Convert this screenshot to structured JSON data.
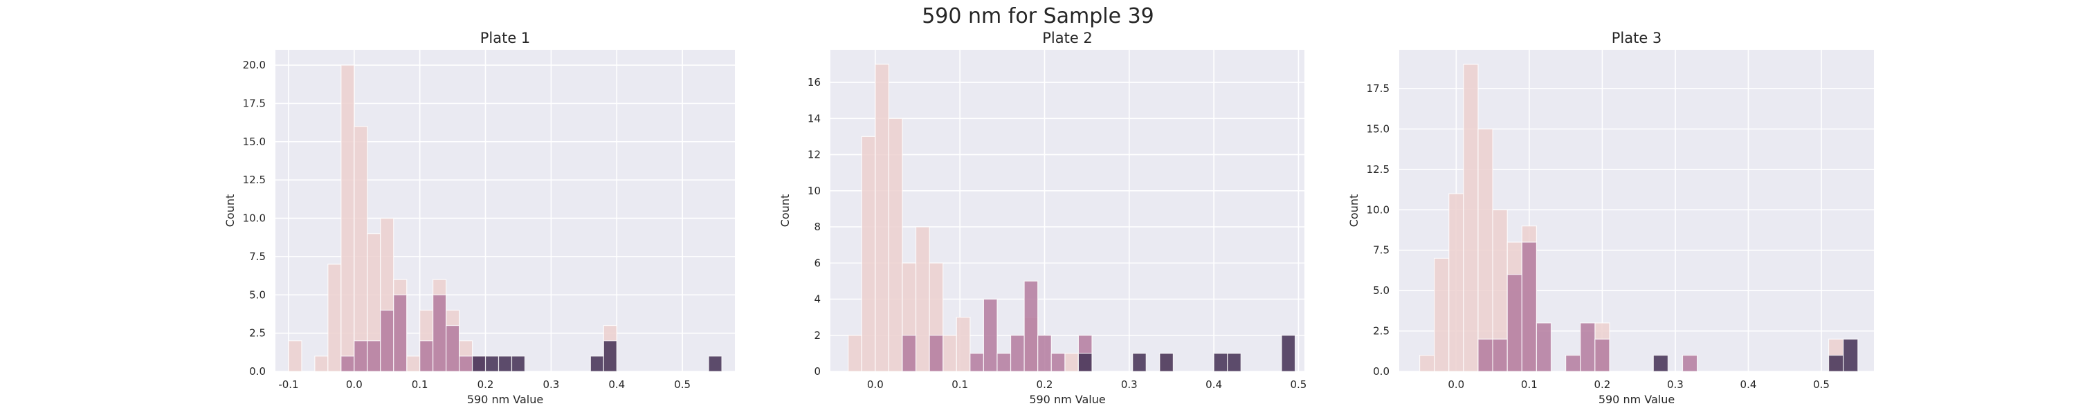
{
  "figure": {
    "title": "590 nm for Sample 39"
  },
  "chart_data": [
    {
      "type": "bar",
      "title": "Plate 1",
      "xlabel": "590 nm Value",
      "ylabel": "Count",
      "xlim": [
        -0.12,
        0.58
      ],
      "ylim": [
        0,
        21
      ],
      "xticks": [
        -0.1,
        0.0,
        0.1,
        0.2,
        0.3,
        0.4,
        0.5
      ],
      "yticks": [
        0.0,
        2.5,
        5.0,
        7.5,
        10.0,
        12.5,
        15.0,
        17.5,
        20.0
      ],
      "tick_decimals": 1,
      "bin_width": 0.02,
      "grid": true,
      "series": [
        {
          "bins": [
            [
              -0.1,
              2
            ],
            [
              -0.06,
              1
            ],
            [
              -0.04,
              7
            ],
            [
              -0.02,
              20
            ],
            [
              0.0,
              16
            ],
            [
              0.02,
              9
            ],
            [
              0.04,
              10
            ],
            [
              0.06,
              6
            ],
            [
              0.08,
              1
            ],
            [
              0.1,
              4
            ],
            [
              0.12,
              6
            ],
            [
              0.14,
              4
            ],
            [
              0.16,
              2
            ],
            [
              0.38,
              3
            ]
          ]
        },
        {
          "bins": [
            [
              -0.02,
              1
            ],
            [
              0.0,
              2
            ],
            [
              0.02,
              2
            ],
            [
              0.04,
              4
            ],
            [
              0.06,
              5
            ],
            [
              0.1,
              2
            ],
            [
              0.12,
              5
            ],
            [
              0.14,
              3
            ],
            [
              0.16,
              1
            ],
            [
              0.18,
              1
            ]
          ]
        },
        {
          "bins": [
            [
              0.18,
              1
            ],
            [
              0.2,
              1
            ],
            [
              0.22,
              1
            ],
            [
              0.24,
              1
            ],
            [
              0.36,
              1
            ],
            [
              0.38,
              2
            ],
            [
              0.54,
              1
            ]
          ]
        }
      ]
    },
    {
      "type": "bar",
      "title": "Plate 2",
      "xlabel": "590 nm Value",
      "ylabel": "Count",
      "xlim": [
        -0.053,
        0.507
      ],
      "ylim": [
        0,
        17.8
      ],
      "xticks": [
        0.0,
        0.1,
        0.2,
        0.3,
        0.4,
        0.5
      ],
      "yticks": [
        0,
        2,
        4,
        6,
        8,
        10,
        12,
        14,
        16
      ],
      "tick_decimals": 0,
      "bin_width": 0.016,
      "grid": true,
      "series": [
        {
          "bins": [
            [
              -0.032,
              2
            ],
            [
              -0.016,
              13
            ],
            [
              0.0,
              17
            ],
            [
              0.016,
              14
            ],
            [
              0.032,
              6
            ],
            [
              0.048,
              8
            ],
            [
              0.064,
              6
            ],
            [
              0.08,
              2
            ],
            [
              0.096,
              3
            ],
            [
              0.176,
              3
            ],
            [
              0.224,
              1
            ],
            [
              0.336,
              1
            ]
          ]
        },
        {
          "bins": [
            [
              0.032,
              2
            ],
            [
              0.064,
              2
            ],
            [
              0.112,
              1
            ],
            [
              0.128,
              4
            ],
            [
              0.144,
              1
            ],
            [
              0.16,
              2
            ],
            [
              0.176,
              5
            ],
            [
              0.192,
              2
            ],
            [
              0.208,
              1
            ],
            [
              0.24,
              2
            ]
          ]
        },
        {
          "bins": [
            [
              0.24,
              1
            ],
            [
              0.304,
              1
            ],
            [
              0.336,
              1
            ],
            [
              0.4,
              1
            ],
            [
              0.416,
              1
            ],
            [
              0.48,
              2
            ]
          ]
        }
      ]
    },
    {
      "type": "bar",
      "title": "Plate 3",
      "xlabel": "590 nm Value",
      "ylabel": "Count",
      "xlim": [
        -0.078,
        0.572
      ],
      "ylim": [
        0,
        19.9
      ],
      "xticks": [
        0.0,
        0.1,
        0.2,
        0.3,
        0.4,
        0.5
      ],
      "yticks": [
        0.0,
        2.5,
        5.0,
        7.5,
        10.0,
        12.5,
        15.0,
        17.5
      ],
      "tick_decimals": 1,
      "bin_width": 0.02,
      "grid": true,
      "series": [
        {
          "bins": [
            [
              -0.05,
              1
            ],
            [
              -0.03,
              7
            ],
            [
              -0.01,
              11
            ],
            [
              0.01,
              19
            ],
            [
              0.03,
              15
            ],
            [
              0.05,
              10
            ],
            [
              0.07,
              8
            ],
            [
              0.09,
              9
            ],
            [
              0.19,
              3
            ],
            [
              0.51,
              2
            ]
          ]
        },
        {
          "bins": [
            [
              0.03,
              2
            ],
            [
              0.05,
              2
            ],
            [
              0.07,
              6
            ],
            [
              0.09,
              8
            ],
            [
              0.11,
              3
            ],
            [
              0.15,
              1
            ],
            [
              0.17,
              3
            ],
            [
              0.19,
              2
            ],
            [
              0.31,
              1
            ]
          ]
        },
        {
          "bins": [
            [
              0.27,
              1
            ],
            [
              0.51,
              1
            ],
            [
              0.53,
              2
            ]
          ]
        }
      ]
    }
  ],
  "style": {
    "plot_background": "#eaeaf2",
    "grid_color": "#ffffff",
    "series_colors": [
      "#ecd0cf",
      "#b47b9f",
      "#4d3a5c"
    ],
    "series_opacity": [
      0.85,
      0.85,
      0.9
    ]
  }
}
